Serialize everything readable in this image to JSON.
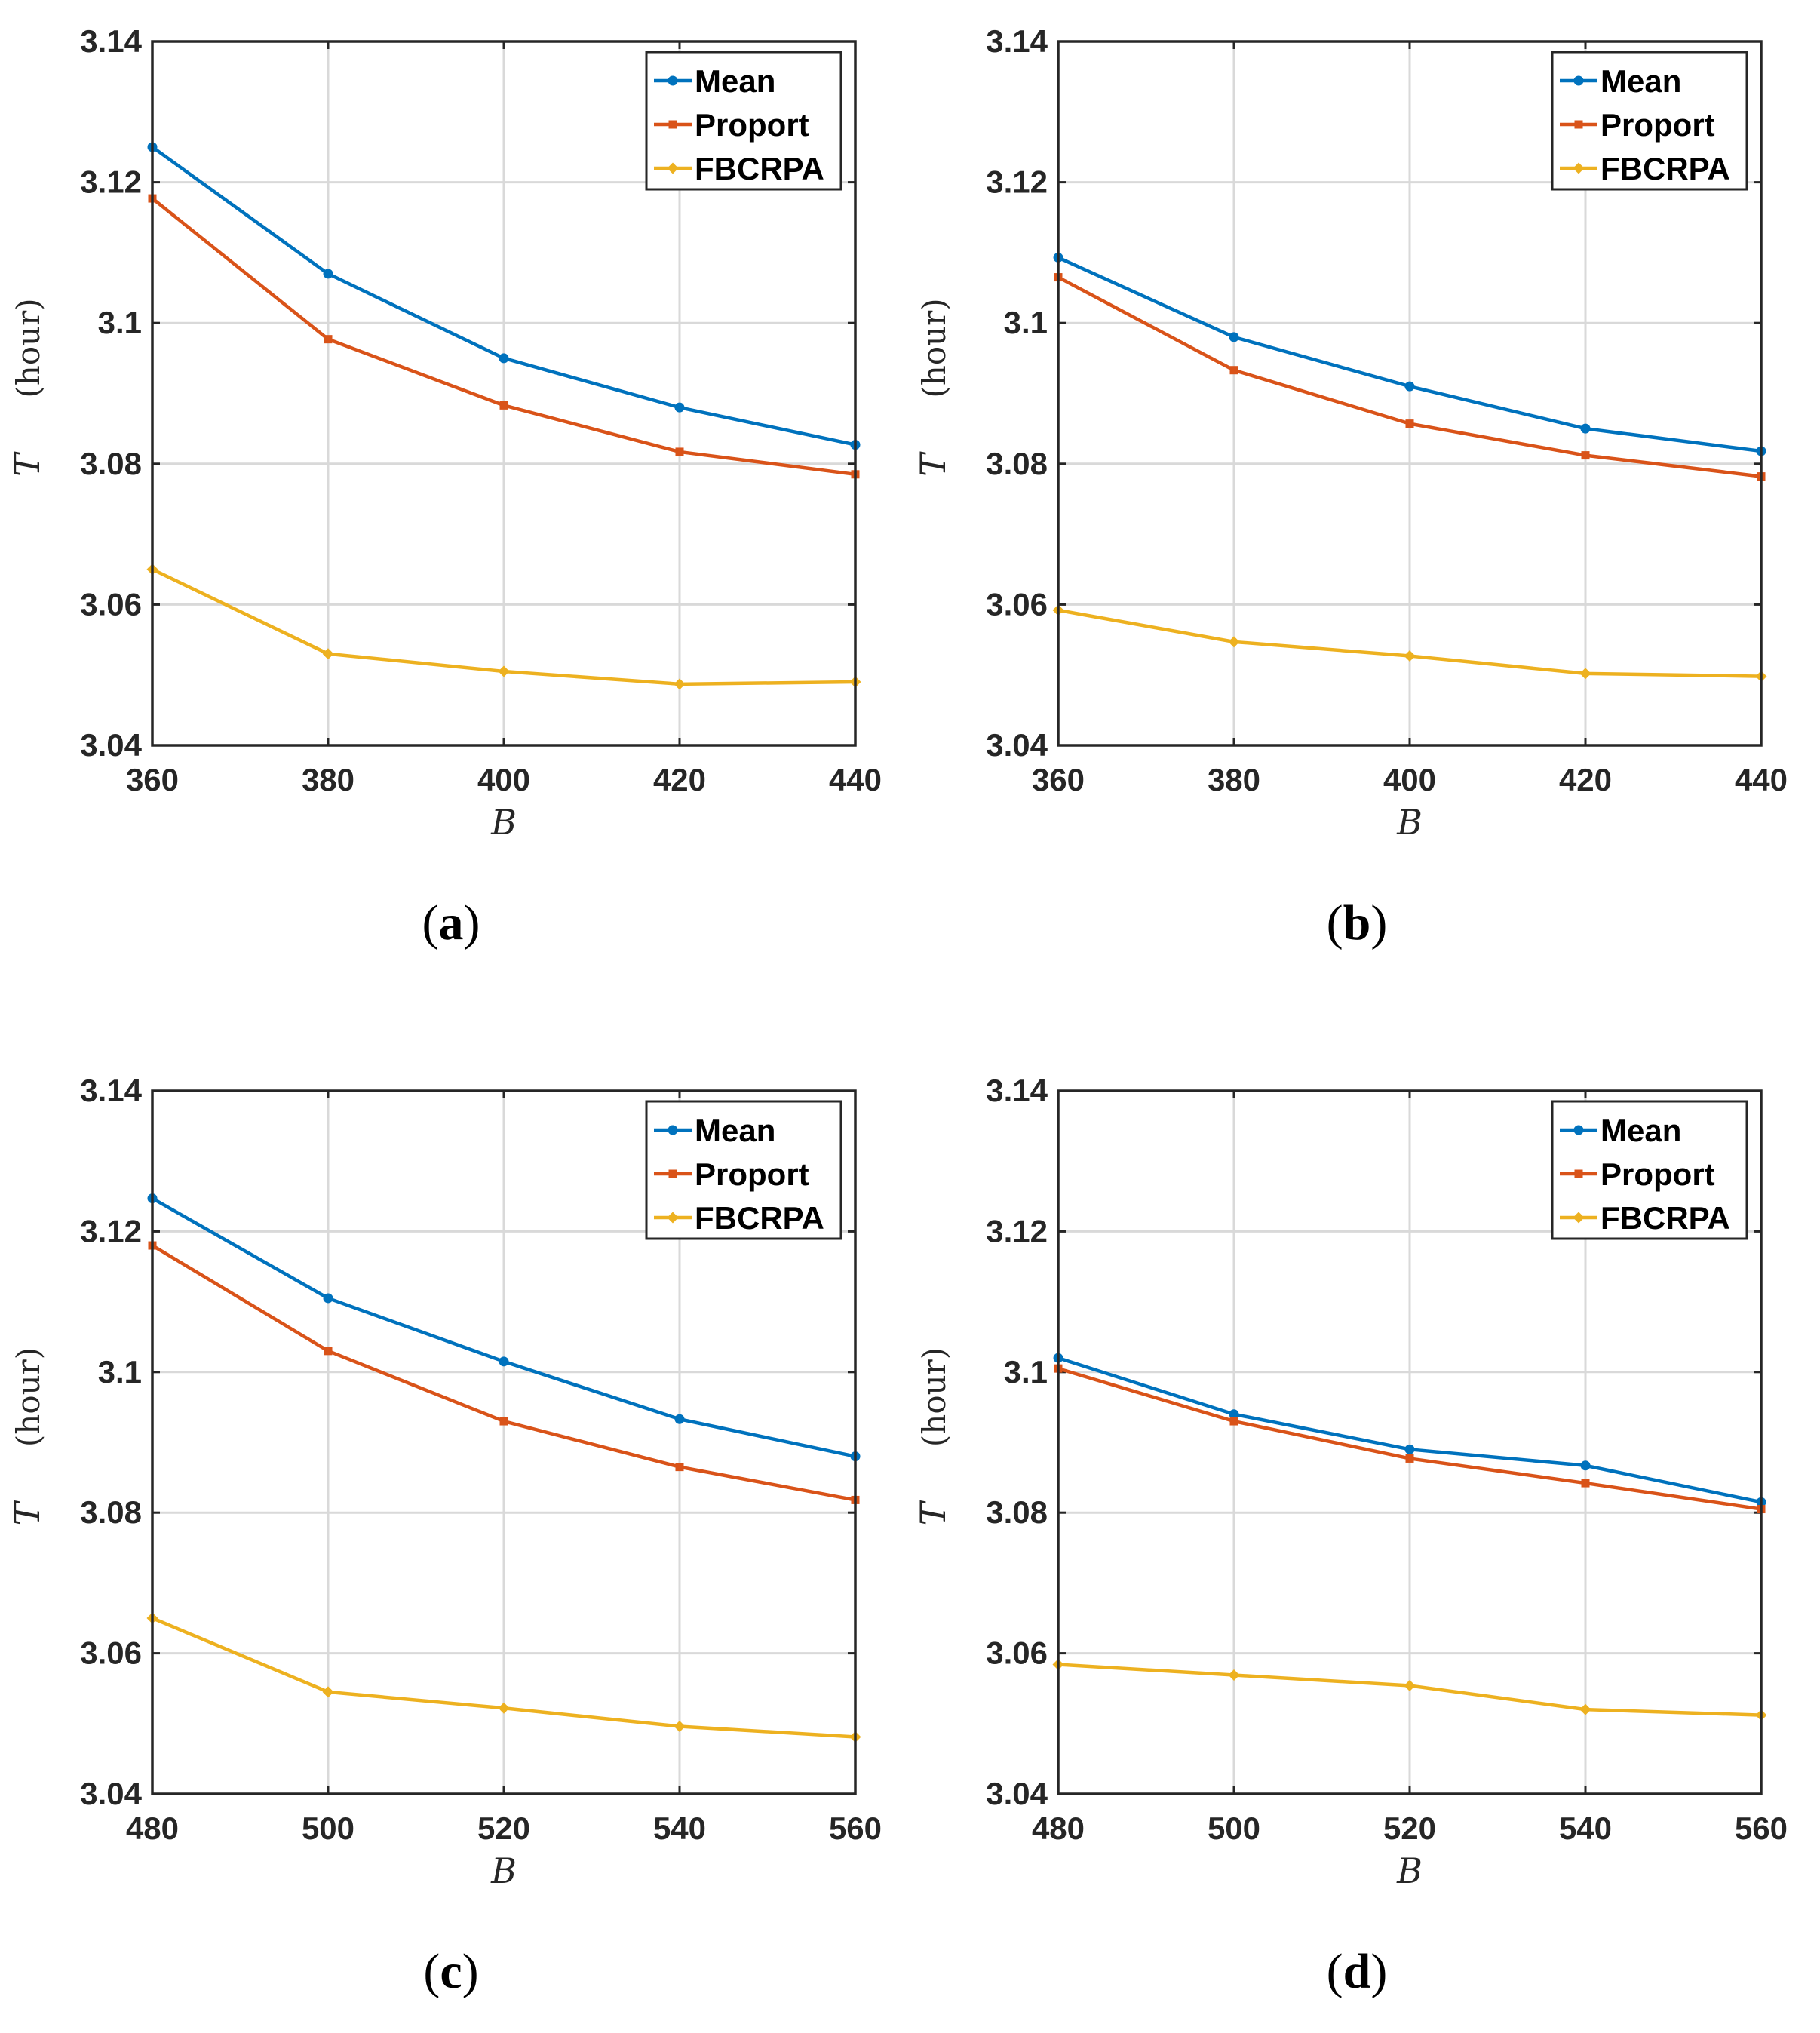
{
  "legend_title": "",
  "chart_data": [
    {
      "type": "line",
      "caption_open": "(",
      "caption_letter": "a",
      "caption_close": ")",
      "x": [
        360,
        380,
        400,
        420,
        440
      ],
      "xticks": [
        "360",
        "380",
        "400",
        "420",
        "440"
      ],
      "xlim": [
        360,
        440
      ],
      "ylim": [
        3.04,
        3.14
      ],
      "yticks": [
        "3.04",
        "3.06",
        "3.08",
        "3.1",
        "3.12",
        "3.14"
      ],
      "xlabel": "B",
      "ylabel": "T",
      "ylabel_unit": "(hour)",
      "grid": true,
      "legend_position": "top-right",
      "series": [
        {
          "name": "Mean",
          "color": "#0072BD",
          "marker": "circle",
          "values": [
            3.125,
            3.107,
            3.095,
            3.088,
            3.0827
          ]
        },
        {
          "name": "Proport",
          "color": "#D95319",
          "marker": "square",
          "values": [
            3.1177,
            3.0977,
            3.0883,
            3.0817,
            3.0785
          ]
        },
        {
          "name": "FBCRPA",
          "color": "#EDB120",
          "marker": "diamond",
          "values": [
            3.065,
            3.053,
            3.0505,
            3.0487,
            3.049
          ]
        }
      ]
    },
    {
      "type": "line",
      "caption_open": "(",
      "caption_letter": "b",
      "caption_close": ")",
      "x": [
        360,
        380,
        400,
        420,
        440
      ],
      "xticks": [
        "360",
        "380",
        "400",
        "420",
        "440"
      ],
      "xlim": [
        360,
        440
      ],
      "ylim": [
        3.04,
        3.14
      ],
      "yticks": [
        "3.04",
        "3.06",
        "3.08",
        "3.1",
        "3.12",
        "3.14"
      ],
      "xlabel": "B",
      "ylabel": "T",
      "ylabel_unit": "(hour)",
      "grid": true,
      "legend_position": "top-right",
      "series": [
        {
          "name": "Mean",
          "color": "#0072BD",
          "marker": "circle",
          "values": [
            3.1093,
            3.098,
            3.091,
            3.085,
            3.0818
          ]
        },
        {
          "name": "Proport",
          "color": "#D95319",
          "marker": "square",
          "values": [
            3.1065,
            3.0933,
            3.0857,
            3.0812,
            3.0782
          ]
        },
        {
          "name": "FBCRPA",
          "color": "#EDB120",
          "marker": "diamond",
          "values": [
            3.0592,
            3.0547,
            3.0527,
            3.0502,
            3.0498
          ]
        }
      ]
    },
    {
      "type": "line",
      "caption_open": "(",
      "caption_letter": "c",
      "caption_close": ")",
      "x": [
        480,
        500,
        520,
        540,
        560
      ],
      "xticks": [
        "480",
        "500",
        "520",
        "540",
        "560"
      ],
      "xlim": [
        480,
        560
      ],
      "ylim": [
        3.04,
        3.14
      ],
      "yticks": [
        "3.04",
        "3.06",
        "3.08",
        "3.1",
        "3.12",
        "3.14"
      ],
      "xlabel": "B",
      "ylabel": "T",
      "ylabel_unit": "(hour)",
      "grid": true,
      "legend_position": "top-right",
      "series": [
        {
          "name": "Mean",
          "color": "#0072BD",
          "marker": "circle",
          "values": [
            3.1247,
            3.1105,
            3.1015,
            3.0933,
            3.088
          ]
        },
        {
          "name": "Proport",
          "color": "#D95319",
          "marker": "square",
          "values": [
            3.118,
            3.103,
            3.093,
            3.0865,
            3.0818
          ]
        },
        {
          "name": "FBCRPA",
          "color": "#EDB120",
          "marker": "diamond",
          "values": [
            3.065,
            3.0545,
            3.0522,
            3.0496,
            3.0481
          ]
        }
      ]
    },
    {
      "type": "line",
      "caption_open": "(",
      "caption_letter": "d",
      "caption_close": ")",
      "x": [
        480,
        500,
        520,
        540,
        560
      ],
      "xticks": [
        "480",
        "500",
        "520",
        "540",
        "560"
      ],
      "xlim": [
        480,
        560
      ],
      "ylim": [
        3.04,
        3.14
      ],
      "yticks": [
        "3.04",
        "3.06",
        "3.08",
        "3.1",
        "3.12",
        "3.14"
      ],
      "xlabel": "B",
      "ylabel": "T",
      "ylabel_unit": "(hour)",
      "grid": true,
      "legend_position": "top-right",
      "series": [
        {
          "name": "Mean",
          "color": "#0072BD",
          "marker": "circle",
          "values": [
            3.102,
            3.094,
            3.089,
            3.0867,
            3.0815
          ]
        },
        {
          "name": "Proport",
          "color": "#D95319",
          "marker": "square",
          "values": [
            3.1005,
            3.093,
            3.0877,
            3.0842,
            3.0805
          ]
        },
        {
          "name": "FBCRPA",
          "color": "#EDB120",
          "marker": "diamond",
          "values": [
            3.0584,
            3.0569,
            3.0554,
            3.052,
            3.0512
          ]
        }
      ]
    }
  ]
}
